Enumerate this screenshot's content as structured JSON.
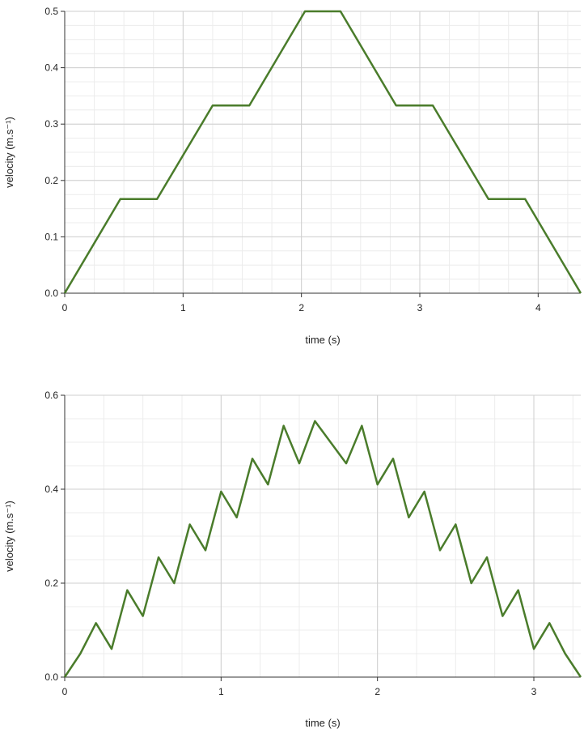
{
  "chart_data": [
    {
      "type": "line",
      "xlabel": "time (s)",
      "ylabel": "velocity (m.s⁻¹)",
      "xlim": [
        0,
        4.36
      ],
      "ylim": [
        0,
        0.5
      ],
      "xticks": [
        "0",
        "1",
        "2",
        "3",
        "4"
      ],
      "yticks": [
        "0.0",
        "0.1",
        "0.2",
        "0.3",
        "0.4",
        "0.5"
      ],
      "grid": true,
      "line_color": "#4a7c2b",
      "series": [
        {
          "x": [
            0,
            0.47,
            0.78,
            1.25,
            1.56,
            2.03,
            2.33,
            2.8,
            3.11,
            3.58,
            3.89,
            4.36
          ],
          "y": [
            0,
            0.167,
            0.167,
            0.333,
            0.333,
            0.5,
            0.5,
            0.333,
            0.333,
            0.167,
            0.167,
            0
          ]
        }
      ]
    },
    {
      "type": "line",
      "xlabel": "time (s)",
      "ylabel": "velocity (m.s⁻¹)",
      "xlim": [
        0,
        3.3
      ],
      "ylim": [
        0,
        0.6
      ],
      "xticks": [
        "0",
        "1",
        "2",
        "3"
      ],
      "yticks": [
        "0.0",
        "0.2",
        "0.4",
        "0.6"
      ],
      "grid": true,
      "line_color": "#4a7c2b",
      "series": [
        {
          "x": [
            0,
            0.1,
            0.2,
            0.3,
            0.4,
            0.5,
            0.6,
            0.7,
            0.8,
            0.9,
            1.0,
            1.1,
            1.2,
            1.3,
            1.4,
            1.5,
            1.6,
            1.7,
            1.8,
            1.9,
            2.0,
            2.1,
            2.2,
            2.3,
            2.4,
            2.5,
            2.6,
            2.7,
            2.8,
            2.9,
            3.0,
            3.1,
            3.2,
            3.3
          ],
          "y": [
            0,
            0.05,
            0.115,
            0.06,
            0.185,
            0.13,
            0.255,
            0.2,
            0.325,
            0.27,
            0.395,
            0.34,
            0.465,
            0.41,
            0.535,
            0.455,
            0.545,
            0.5,
            0.455,
            0.535,
            0.41,
            0.465,
            0.34,
            0.395,
            0.27,
            0.325,
            0.2,
            0.255,
            0.13,
            0.185,
            0.06,
            0.115,
            0.05,
            0
          ]
        }
      ]
    }
  ]
}
